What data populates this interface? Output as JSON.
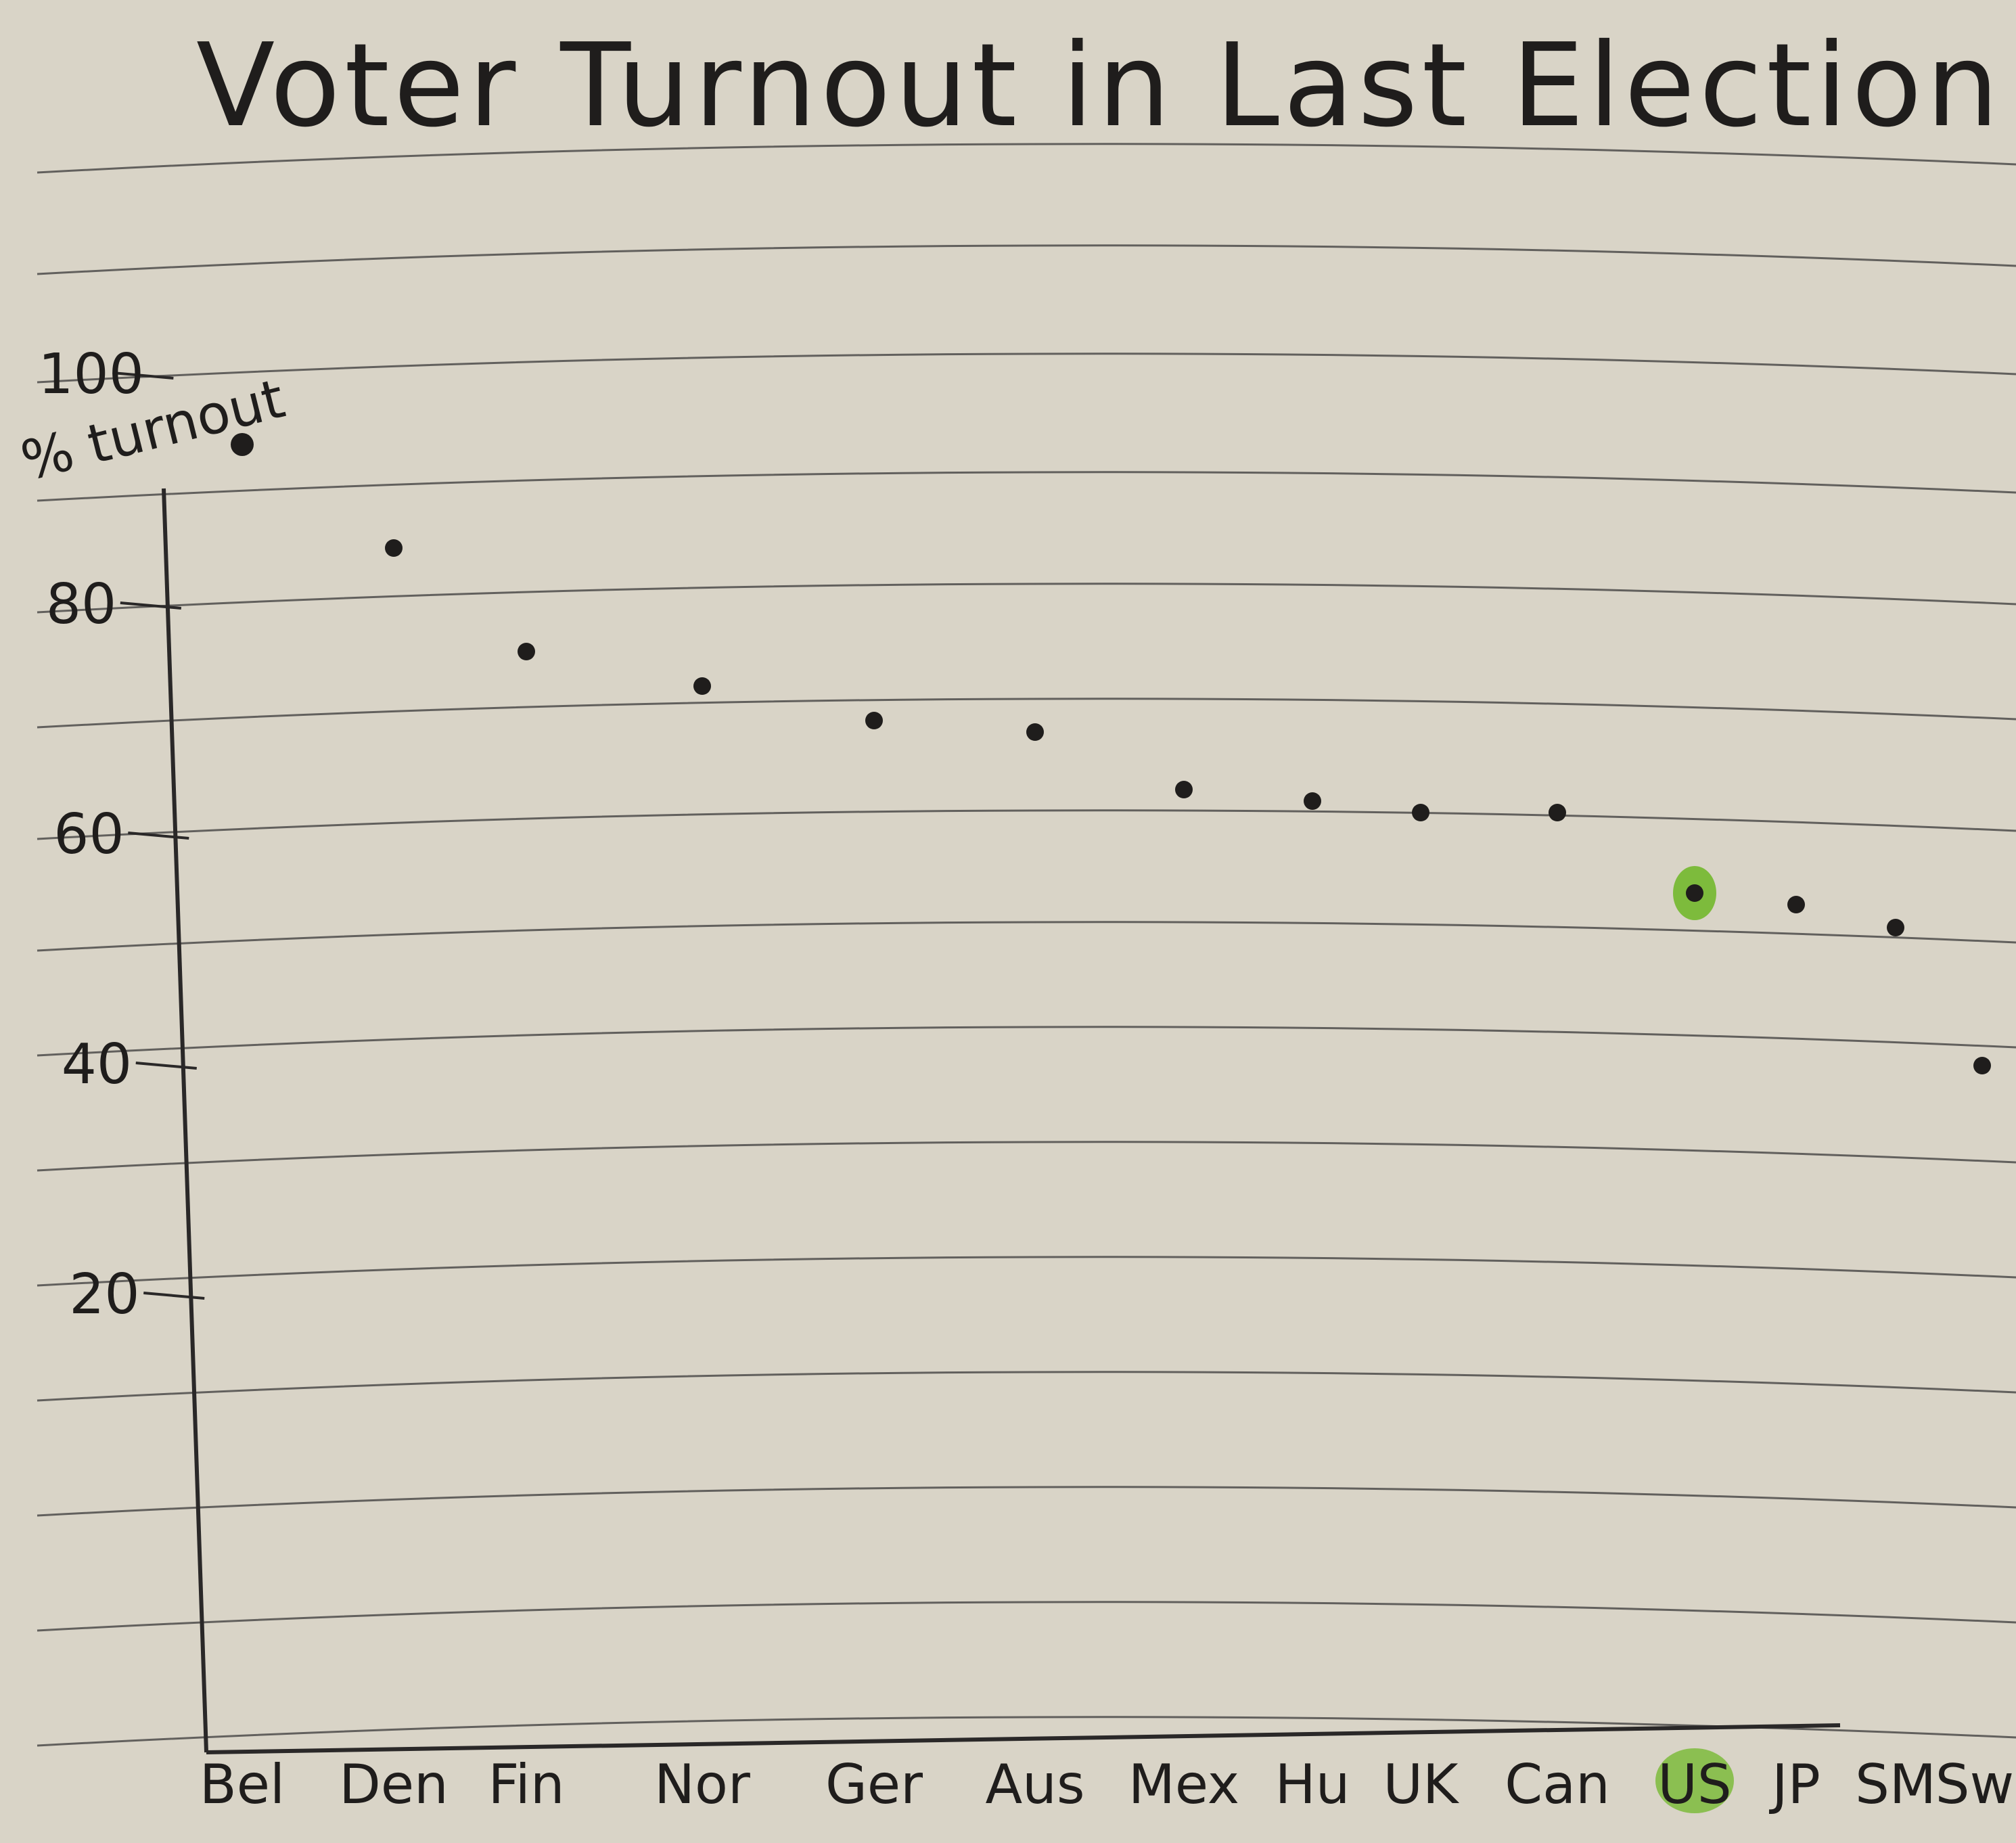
{
  "chart_data": {
    "type": "scatter",
    "title": "Voter Turnout in Last Election",
    "ylabel": "% turnout",
    "xlabel": "",
    "ylim": [
      0,
      110
    ],
    "yticks": [
      20,
      40,
      60,
      80,
      100
    ],
    "grid": true,
    "categories": [
      "Bel",
      "Den",
      "Fin",
      "Nor",
      "Ger",
      "Aus",
      "Mex",
      "Hu",
      "UK",
      "Can",
      "US",
      "JP",
      "SM",
      "Swi"
    ],
    "values": [
      94,
      85,
      76,
      73,
      70,
      69,
      64,
      63,
      62,
      62,
      55,
      54,
      52,
      40
    ],
    "highlight": {
      "category": "US",
      "color": "#7dbb3c"
    }
  },
  "colors": {
    "paper": "#d9d4c7",
    "ruled_line": "#3a3a3a",
    "ink": "#1f1d1c",
    "highlight": "#7dbb3c"
  }
}
